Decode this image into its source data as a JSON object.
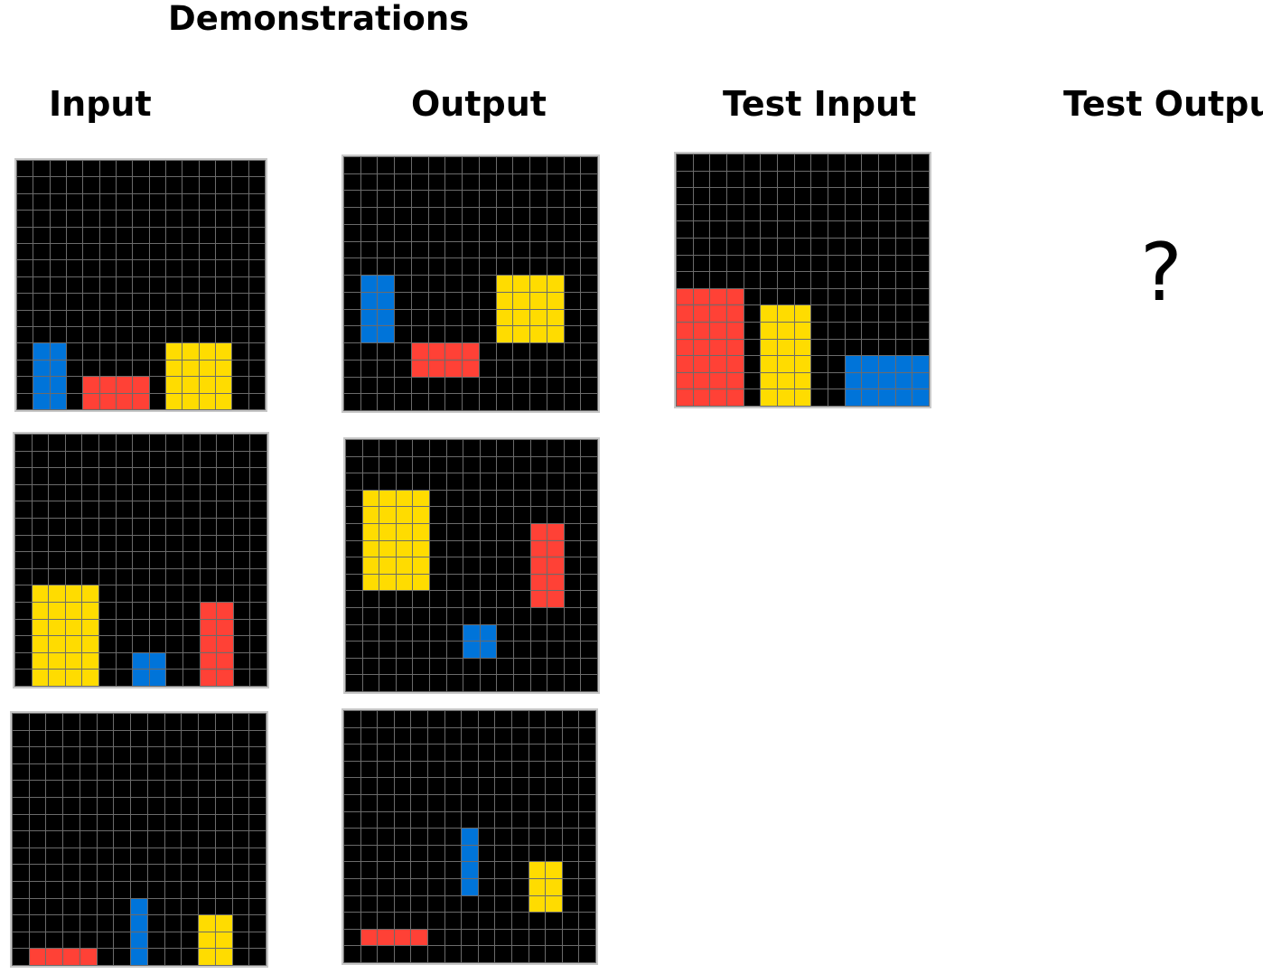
{
  "title": "Demonstrations",
  "headers": {
    "input": "Input",
    "output": "Output",
    "test_input": "Test Input",
    "test_output": "Test Output"
  },
  "question_mark": "?",
  "colors": {
    "0": "#000000",
    "1": "#0074d9",
    "2": "#ff4136",
    "4": "#ffdc00",
    "grid_line": "#6b6b6b",
    "border": "#c8c8c8"
  },
  "grids": [
    {
      "id": "demo-1-input",
      "size": [
        15,
        15
      ],
      "rects": [
        {
          "color": 1,
          "row": 11,
          "col": 1,
          "h": 4,
          "w": 2
        },
        {
          "color": 2,
          "row": 13,
          "col": 4,
          "h": 2,
          "w": 4
        },
        {
          "color": 4,
          "row": 11,
          "col": 9,
          "h": 4,
          "w": 4
        }
      ]
    },
    {
      "id": "demo-1-output",
      "size": [
        15,
        15
      ],
      "rects": [
        {
          "color": 1,
          "row": 7,
          "col": 1,
          "h": 4,
          "w": 2
        },
        {
          "color": 2,
          "row": 11,
          "col": 4,
          "h": 2,
          "w": 4
        },
        {
          "color": 4,
          "row": 7,
          "col": 9,
          "h": 4,
          "w": 4
        }
      ]
    },
    {
      "id": "demo-2-input",
      "size": [
        15,
        15
      ],
      "rects": [
        {
          "color": 4,
          "row": 9,
          "col": 1,
          "h": 6,
          "w": 4
        },
        {
          "color": 1,
          "row": 13,
          "col": 7,
          "h": 2,
          "w": 2
        },
        {
          "color": 2,
          "row": 10,
          "col": 11,
          "h": 5,
          "w": 2
        }
      ]
    },
    {
      "id": "demo-2-output",
      "size": [
        15,
        15
      ],
      "rects": [
        {
          "color": 4,
          "row": 3,
          "col": 1,
          "h": 6,
          "w": 4
        },
        {
          "color": 1,
          "row": 11,
          "col": 7,
          "h": 2,
          "w": 2
        },
        {
          "color": 2,
          "row": 5,
          "col": 11,
          "h": 5,
          "w": 2
        }
      ]
    },
    {
      "id": "demo-3-input",
      "size": [
        15,
        15
      ],
      "rects": [
        {
          "color": 2,
          "row": 14,
          "col": 1,
          "h": 1,
          "w": 4
        },
        {
          "color": 1,
          "row": 11,
          "col": 7,
          "h": 4,
          "w": 1
        },
        {
          "color": 4,
          "row": 12,
          "col": 11,
          "h": 3,
          "w": 2
        }
      ]
    },
    {
      "id": "demo-3-output",
      "size": [
        15,
        15
      ],
      "rects": [
        {
          "color": 2,
          "row": 13,
          "col": 1,
          "h": 1,
          "w": 4
        },
        {
          "color": 1,
          "row": 7,
          "col": 7,
          "h": 4,
          "w": 1
        },
        {
          "color": 4,
          "row": 9,
          "col": 11,
          "h": 3,
          "w": 2
        }
      ]
    },
    {
      "id": "test-input",
      "size": [
        15,
        15
      ],
      "rects": [
        {
          "color": 2,
          "row": 8,
          "col": 0,
          "h": 7,
          "w": 4
        },
        {
          "color": 4,
          "row": 9,
          "col": 5,
          "h": 6,
          "w": 3
        },
        {
          "color": 1,
          "row": 12,
          "col": 10,
          "h": 3,
          "w": 5
        }
      ]
    }
  ]
}
